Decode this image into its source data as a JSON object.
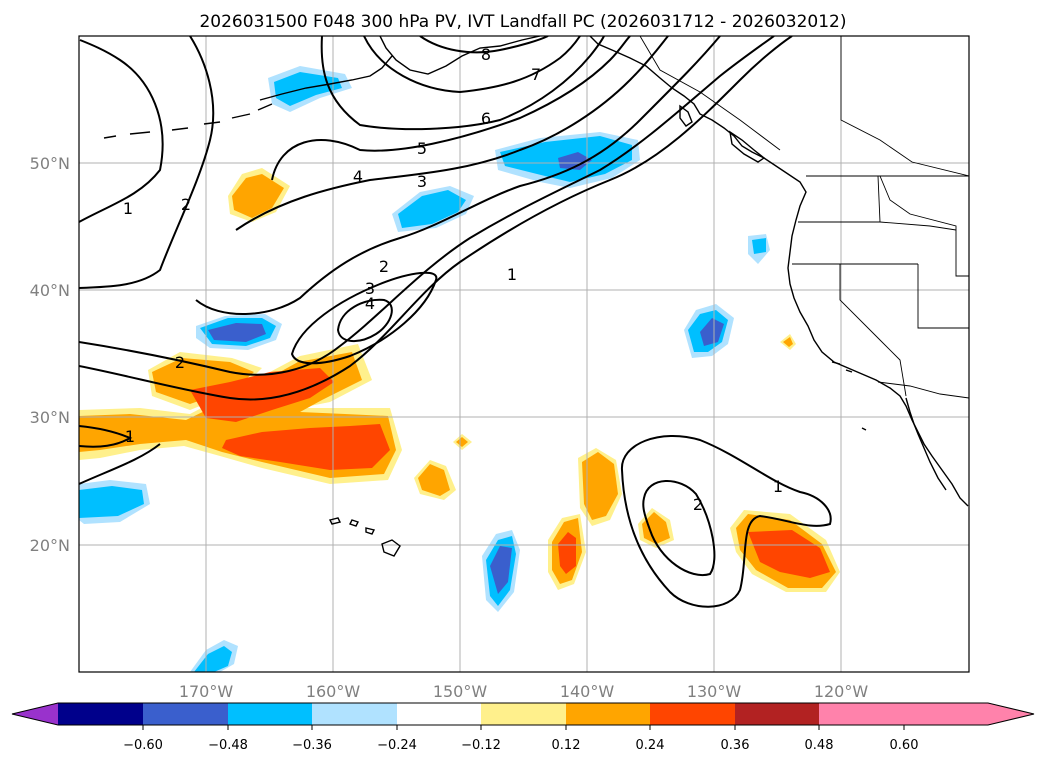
{
  "title": "2026031500 F048 300 hPa PV, IVT Landfall PC (2026031712 - 2026032012)",
  "map": {
    "lat_labels": [
      "50°N",
      "40°N",
      "30°N",
      "20°N"
    ],
    "lon_labels": [
      "170°W",
      "160°W",
      "150°W",
      "140°W",
      "130°W",
      "120°W"
    ]
  },
  "contour_labels": [
    "8",
    "7",
    "6",
    "5",
    "4",
    "3",
    "2",
    "1",
    "2",
    "3",
    "4",
    "2",
    "1",
    "1",
    "2",
    "1"
  ],
  "colorbar": {
    "colors": [
      "#9932cc",
      "#00008b",
      "#3a5fcd",
      "#00bfff",
      "#b0e2ff",
      "#ffffff",
      "#fff08c",
      "#ffa500",
      "#ff4500",
      "#b22222",
      "#ff82ab"
    ],
    "tick_labels": [
      "−0.60",
      "−0.48",
      "−0.36",
      "−0.24",
      "−0.12",
      "0.12",
      "0.24",
      "0.36",
      "0.48",
      "0.60"
    ]
  }
}
